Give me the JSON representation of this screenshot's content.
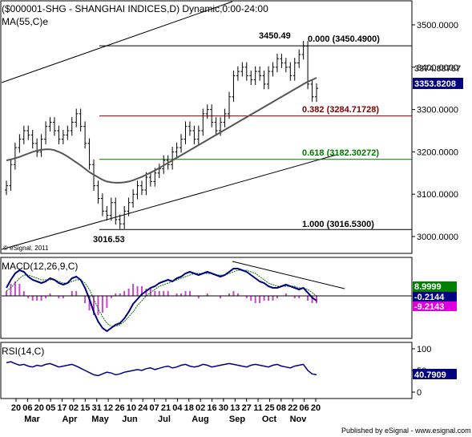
{
  "header": {
    "title": "($000001-SHG - SHANGHAI INDICES,D) Dynamic,0:00-24:00",
    "ma_label": "MA(55,C)e"
  },
  "panels": {
    "macd_label": "MACD(12,26,9,C)",
    "rsi_label": "RSI(14,C)",
    "copyright": "© eSignal, 2011",
    "footer": "Published by eSignal - www.esignal.com"
  },
  "colors": {
    "candle": "#000000",
    "ma": "#555555",
    "macd_line": "#000080",
    "signal_line": "#007700",
    "histogram": "#cc44cc",
    "fib_0": "#000000",
    "fib_382": "#800000",
    "fib_618": "#007700",
    "fib_100": "#000000",
    "price_box": "#000080",
    "macd_box": "#008000",
    "signal_box": "#dd00dd"
  },
  "chart_data": [
    {
      "type": "candlestick",
      "title": "($000001-SHG - SHANGHAI INDICES,D) Dynamic,0:00-24:00",
      "x_tick_labels": [
        "20",
        "06",
        "20",
        "05",
        "17",
        "02",
        "15",
        "31",
        "12",
        "26",
        "10",
        "24",
        "07",
        "21",
        "04",
        "18",
        "02",
        "16",
        "30",
        "13",
        "27",
        "11",
        "25",
        "08",
        "22",
        "06",
        "20"
      ],
      "month_labels": [
        "Mar",
        "Apr",
        "May",
        "Jun",
        "Jul",
        "Aug",
        "Sep",
        "Oct",
        "Nov"
      ],
      "y_axis": {
        "min": 2950,
        "max": 3550,
        "ticks": [
          3000,
          3100,
          3200,
          3300,
          3400,
          3500
        ]
      },
      "y_tick_labels": [
        "3000.0000",
        "3100.0000",
        "3200.0000",
        "3300.0000",
        "3400.0000",
        "3500.0000"
      ],
      "annotations": {
        "high": "3450.49",
        "low": "3016.53"
      },
      "fibonacci": [
        {
          "ratio": "0.000",
          "level": 3450.49,
          "label": "0.000 (3450.4900)"
        },
        {
          "ratio": "0.382",
          "level": 3284.71728,
          "label": "0.382 (3284.71728)"
        },
        {
          "ratio": "0.618",
          "level": 3182.30272,
          "label": "0.618 (3182.30272)"
        },
        {
          "ratio": "1.000",
          "level": 3016.53,
          "label": "1.000 (3016.5300)"
        }
      ],
      "price_labels": {
        "ma_value": "3374.88767",
        "last_close": "3353.8208"
      },
      "approx_close_series": [
        3120,
        3170,
        3210,
        3230,
        3250,
        3240,
        3220,
        3200,
        3230,
        3260,
        3270,
        3250,
        3230,
        3240,
        3250,
        3270,
        3290,
        3260,
        3220,
        3170,
        3120,
        3090,
        3060,
        3050,
        3080,
        3040,
        3030,
        3060,
        3080,
        3100,
        3120,
        3110,
        3140,
        3130,
        3150,
        3160,
        3180,
        3170,
        3200,
        3210,
        3230,
        3260,
        3250,
        3230,
        3250,
        3290,
        3300,
        3270,
        3250,
        3270,
        3290,
        3330,
        3380,
        3390,
        3400,
        3380,
        3370,
        3390,
        3380,
        3360,
        3390,
        3400,
        3420,
        3410,
        3400,
        3380,
        3410,
        3430,
        3450,
        3360,
        3330,
        3350
      ],
      "approx_ma_series": [
        3180,
        3182,
        3185,
        3188,
        3192,
        3196,
        3200,
        3203,
        3205,
        3206,
        3206,
        3204,
        3200,
        3195,
        3189,
        3182,
        3175,
        3168,
        3160,
        3152,
        3146,
        3140,
        3134,
        3130,
        3128,
        3127,
        3127,
        3128,
        3130,
        3133,
        3137,
        3141,
        3146,
        3151,
        3156,
        3162,
        3168,
        3174,
        3180,
        3186,
        3192,
        3198,
        3204,
        3210,
        3216,
        3222,
        3228,
        3234,
        3240,
        3246,
        3252,
        3258,
        3264,
        3270,
        3276,
        3282,
        3288,
        3294,
        3300,
        3306,
        3312,
        3318,
        3324,
        3330,
        3336,
        3342,
        3348,
        3354,
        3360,
        3366,
        3370,
        3375
      ]
    },
    {
      "type": "line",
      "title": "MACD(12,26,9,C)",
      "y_axis": {
        "min": -20,
        "max": 20
      },
      "value_labels": {
        "macd": "8.9999",
        "zero": "-0.2144",
        "signal": "-9.2143"
      },
      "approx_macd_series": [
        5,
        10,
        14,
        16,
        15,
        12,
        10,
        9,
        8,
        9,
        11,
        10,
        8,
        7,
        8,
        11,
        12,
        10,
        5,
        -2,
        -10,
        -16,
        -20,
        -22,
        -20,
        -18,
        -17,
        -14,
        -10,
        -5,
        -2,
        1,
        3,
        5,
        6,
        8,
        9,
        10,
        9,
        11,
        12,
        14,
        15,
        14,
        13,
        14,
        15,
        14,
        13,
        12,
        13,
        15,
        17,
        17,
        16,
        15,
        13,
        11,
        9,
        8,
        6,
        5,
        5,
        6,
        7,
        6,
        5,
        4,
        5,
        2,
        -1,
        -3
      ],
      "approx_signal_series": [
        3,
        5,
        8,
        11,
        13,
        13,
        12,
        11,
        10,
        10,
        10,
        10,
        9,
        8,
        8,
        9,
        10,
        10,
        8,
        4,
        -2,
        -8,
        -13,
        -17,
        -19,
        -19,
        -18,
        -16,
        -13,
        -10,
        -6,
        -3,
        0,
        2,
        4,
        6,
        7,
        8,
        9,
        10,
        11,
        12,
        13,
        14,
        14,
        14,
        14,
        14,
        13,
        13,
        13,
        14,
        15,
        16,
        16,
        16,
        15,
        14,
        12,
        10,
        8,
        7,
        6,
        6,
        6,
        6,
        6,
        5,
        5,
        4,
        2,
        0
      ],
      "trendline_note": "descending trendline over MACD peaks"
    },
    {
      "type": "line",
      "title": "RSI(14,C)",
      "y_axis": {
        "min": 0,
        "max": 100,
        "ticks": [
          0,
          50,
          100
        ]
      },
      "y_tick_labels": [
        "0",
        "50",
        "100"
      ],
      "value_labels": {
        "rsi": "40.7909"
      },
      "approx_rsi_series": [
        68,
        70,
        66,
        62,
        64,
        60,
        58,
        62,
        60,
        64,
        66,
        62,
        58,
        60,
        62,
        64,
        60,
        55,
        50,
        45,
        40,
        38,
        42,
        46,
        44,
        40,
        42,
        46,
        48,
        50,
        52,
        50,
        54,
        56,
        52,
        55,
        58,
        60,
        56,
        58,
        62,
        64,
        60,
        58,
        60,
        64,
        62,
        58,
        60,
        62,
        64,
        66,
        64,
        62,
        60,
        58,
        62,
        64,
        62,
        60,
        58,
        62,
        64,
        60,
        58,
        56,
        60,
        62,
        64,
        50,
        42,
        40
      ]
    }
  ]
}
